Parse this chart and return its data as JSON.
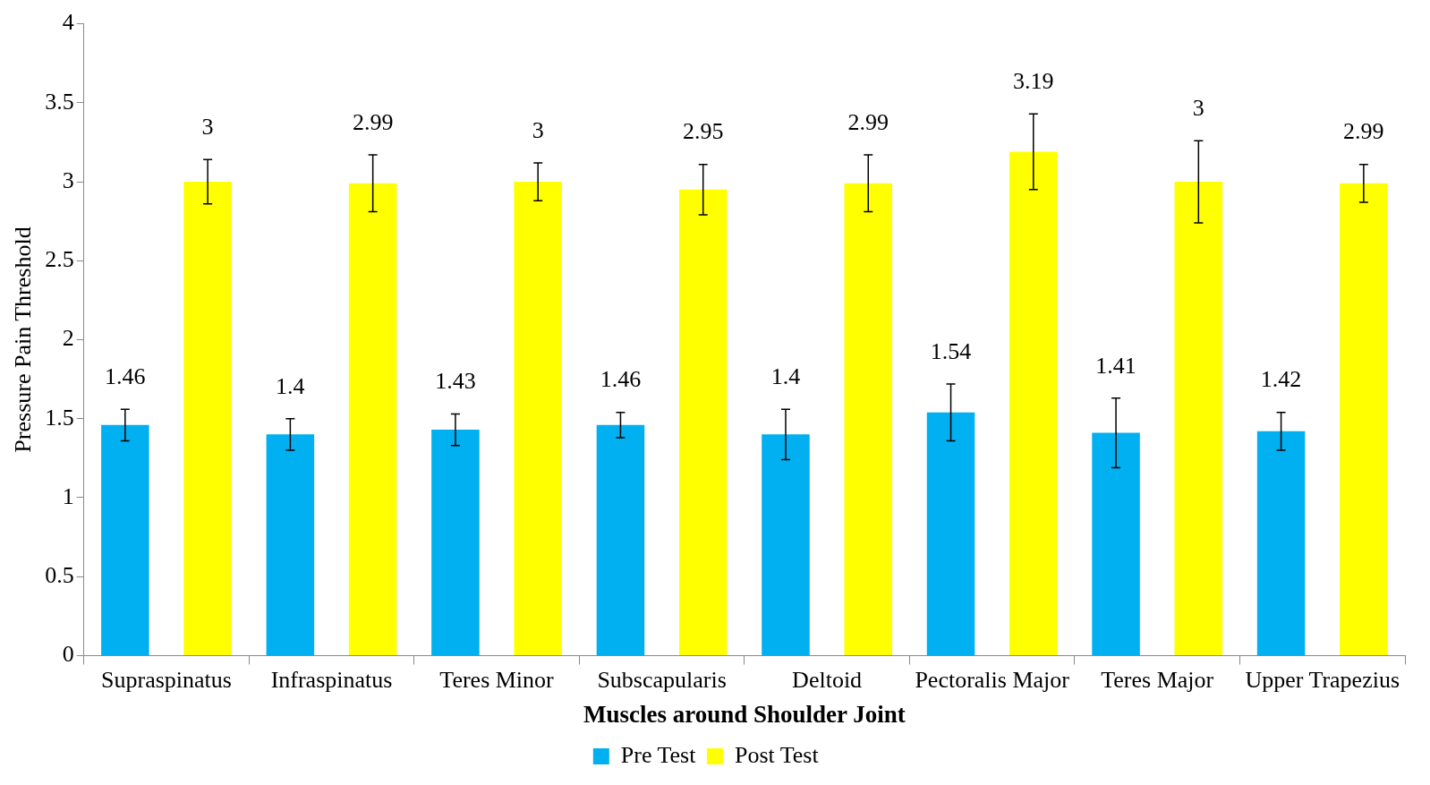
{
  "chart_data": {
    "type": "bar",
    "xlabel": "Muscles around Shoulder Joint",
    "ylabel": "Pressure Pain Threshold",
    "categories": [
      "Supraspinatus",
      "Infraspinatus",
      "Teres Minor",
      "Subscapularis",
      "Deltoid",
      "Pectoralis Major",
      "Teres Major",
      "Upper Trapezius"
    ],
    "series": [
      {
        "name": "Pre Test",
        "color": "#00b0f0",
        "values": [
          1.46,
          1.4,
          1.43,
          1.46,
          1.4,
          1.54,
          1.41,
          1.42
        ],
        "errors": [
          0.1,
          0.1,
          0.1,
          0.08,
          0.16,
          0.18,
          0.22,
          0.12
        ]
      },
      {
        "name": "Post Test",
        "color": "#ffff00",
        "values": [
          3,
          2.99,
          3,
          2.95,
          2.99,
          3.19,
          3,
          2.99
        ],
        "errors": [
          0.14,
          0.18,
          0.12,
          0.16,
          0.18,
          0.24,
          0.26,
          0.12
        ]
      }
    ],
    "ylim": [
      0,
      4
    ],
    "yticks": [
      0,
      0.5,
      1,
      1.5,
      2,
      2.5,
      3,
      3.5,
      4
    ],
    "grid": false,
    "legend": "bottom",
    "data_labels": true
  }
}
